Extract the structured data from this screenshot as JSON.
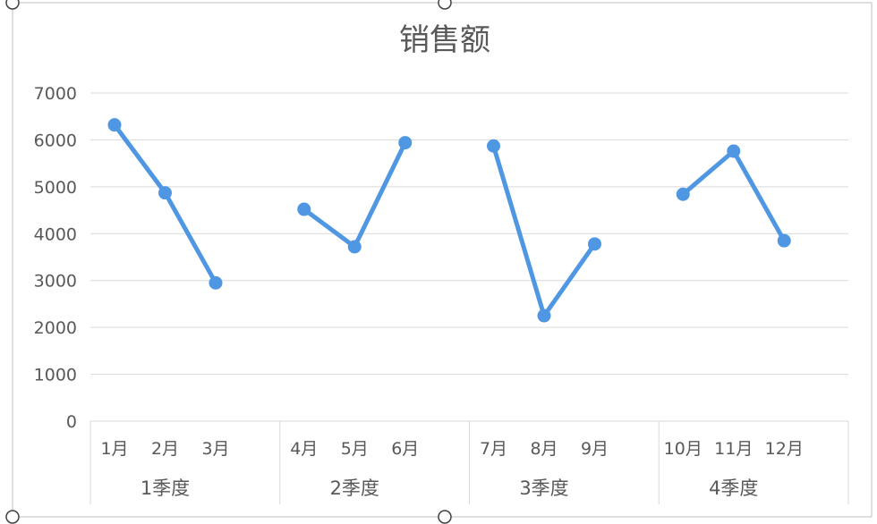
{
  "chart_data": {
    "type": "line",
    "title": "销售额",
    "xlabel": "",
    "ylabel": "",
    "ylim": [
      0,
      7000
    ],
    "yticks": [
      "0",
      "1000",
      "2000",
      "3000",
      "4000",
      "5000",
      "6000",
      "7000"
    ],
    "grid": true,
    "legend": "none",
    "groups": [
      {
        "label": "1季度",
        "categories": [
          "1月",
          "2月",
          "3月"
        ],
        "values": [
          6320,
          4870,
          2950
        ]
      },
      {
        "label": "2季度",
        "categories": [
          "4月",
          "5月",
          "6月"
        ],
        "values": [
          4520,
          3720,
          5940
        ]
      },
      {
        "label": "3季度",
        "categories": [
          "7月",
          "8月",
          "9月"
        ],
        "values": [
          5870,
          2250,
          3780
        ]
      },
      {
        "label": "4季度",
        "categories": [
          "10月",
          "11月",
          "12月"
        ],
        "values": [
          4840,
          5760,
          3850
        ]
      }
    ],
    "line_color": "#4f97e3"
  }
}
